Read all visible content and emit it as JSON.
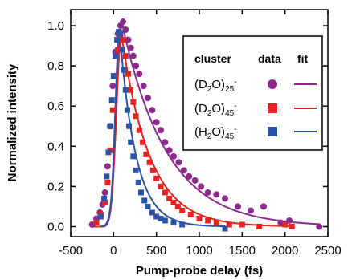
{
  "chart_data": {
    "type": "scatter",
    "xlabel": "Pump-probe delay (fs)",
    "ylabel": "Normalized intensity",
    "xlim": [
      -500,
      2500
    ],
    "ylim": [
      -0.05,
      1.08
    ],
    "xticks": [
      -500,
      0,
      500,
      1000,
      1500,
      2000,
      2500
    ],
    "xtick_labels": [
      "-500",
      "0",
      "500",
      "1000",
      "1500",
      "2000",
      "2500"
    ],
    "yticks": [
      0.0,
      0.2,
      0.4,
      0.6,
      0.8,
      1.0
    ],
    "ytick_labels": [
      "0.0",
      "0.2",
      "0.4",
      "0.6",
      "0.8",
      "1.0"
    ],
    "grid": false,
    "legend": {
      "placement": "top-right",
      "headers": {
        "cluster": "cluster",
        "data": "data",
        "fit": "fit"
      },
      "entries": [
        {
          "base": "(D",
          "sub1": "2",
          "mid": "O)",
          "sub2": "25",
          "sup": "-",
          "series_index": 0
        },
        {
          "base": "(D",
          "sub1": "2",
          "mid": "O)",
          "sub2": "45",
          "sup": "-",
          "series_index": 1
        },
        {
          "base": "(H",
          "sub1": "2",
          "mid": "O)",
          "sub2": "45",
          "sup": "-",
          "series_index": 2
        }
      ]
    },
    "series": [
      {
        "name": "(D2O)25-",
        "color": "#8e2a8e",
        "marker": "circle",
        "x": [
          -250,
          -200,
          -160,
          -130,
          -100,
          -70,
          -40,
          -10,
          20,
          50,
          80,
          110,
          140,
          170,
          200,
          230,
          260,
          300,
          350,
          400,
          450,
          500,
          550,
          600,
          650,
          700,
          760,
          820,
          880,
          950,
          1020,
          1100,
          1200,
          1300,
          1450,
          1600,
          1750,
          1950,
          2050,
          2400
        ],
        "y": [
          0.01,
          0.04,
          0.07,
          0.11,
          0.17,
          0.3,
          0.5,
          0.7,
          0.87,
          0.96,
          1.0,
          1.02,
          0.98,
          0.93,
          0.89,
          0.85,
          0.8,
          0.76,
          0.7,
          0.64,
          0.58,
          0.52,
          0.48,
          0.42,
          0.38,
          0.35,
          0.32,
          0.28,
          0.25,
          0.23,
          0.2,
          0.17,
          0.16,
          0.14,
          0.1,
          0.08,
          0.1,
          0.02,
          0.03,
          0.0
        ]
      },
      {
        "name": "(D2O)45-",
        "color": "#e8221f",
        "marker": "square",
        "x": [
          -200,
          -150,
          -100,
          -70,
          -40,
          -10,
          20,
          50,
          80,
          110,
          140,
          170,
          200,
          230,
          260,
          300,
          340,
          380,
          420,
          460,
          500,
          550,
          600,
          650,
          700,
          750,
          800,
          900,
          1000,
          1100,
          1200,
          1350,
          1500,
          1700,
          2000,
          2080
        ],
        "y": [
          0.02,
          0.06,
          0.12,
          0.22,
          0.38,
          0.58,
          0.75,
          0.88,
          0.95,
          0.93,
          0.85,
          0.76,
          0.68,
          0.62,
          0.55,
          0.48,
          0.42,
          0.36,
          0.32,
          0.28,
          0.24,
          0.2,
          0.17,
          0.14,
          0.12,
          0.1,
          0.08,
          0.06,
          0.04,
          0.03,
          0.02,
          0.01,
          0.01,
          0.0,
          0.01,
          0.0
        ]
      },
      {
        "name": "(H2O)45-",
        "color": "#2a52a8",
        "marker": "square",
        "x": [
          -150,
          -110,
          -80,
          -60,
          -40,
          -20,
          0,
          20,
          40,
          60,
          80,
          100,
          120,
          140,
          160,
          180,
          200,
          230,
          260,
          290,
          320,
          360,
          400,
          450,
          500,
          550,
          600,
          700,
          800,
          1300
        ],
        "y": [
          0.05,
          0.14,
          0.25,
          0.37,
          0.5,
          0.63,
          0.75,
          0.85,
          0.93,
          0.97,
          0.96,
          0.88,
          0.78,
          0.68,
          0.58,
          0.5,
          0.42,
          0.35,
          0.28,
          0.22,
          0.17,
          0.13,
          0.1,
          0.07,
          0.05,
          0.04,
          0.03,
          0.02,
          0.01,
          -0.01
        ]
      }
    ],
    "fits": [
      {
        "series_index": 0,
        "peak_x": 100,
        "peak_y": 1.01,
        "rise": 90,
        "decay": 520
      },
      {
        "series_index": 1,
        "peak_x": 90,
        "peak_y": 0.96,
        "rise": 80,
        "decay": 330
      },
      {
        "series_index": 2,
        "peak_x": 70,
        "peak_y": 0.97,
        "rise": 70,
        "decay": 190
      }
    ]
  }
}
